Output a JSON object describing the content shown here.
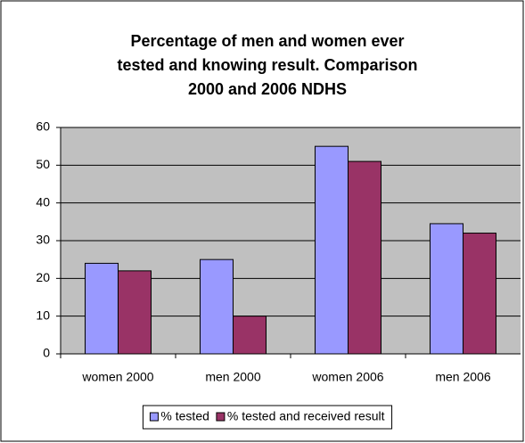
{
  "chart_data": {
    "type": "bar",
    "title": [
      "Percentage of men and women ever",
      "tested and knowing result. Comparison",
      "2000 and 2006 NDHS"
    ],
    "categories": [
      "women 2000",
      "men 2000",
      "women 2006",
      "men 2006"
    ],
    "series": [
      {
        "name": "% tested",
        "color": "#9999ff",
        "values": [
          24,
          25,
          55,
          34.5
        ]
      },
      {
        "name": "% tested and received result",
        "color": "#993366",
        "values": [
          22,
          10,
          51,
          32
        ]
      }
    ],
    "ylim": [
      0,
      60
    ],
    "yticks": [
      0,
      10,
      20,
      30,
      40,
      50,
      60
    ],
    "grid": true,
    "legend": "bottom"
  }
}
